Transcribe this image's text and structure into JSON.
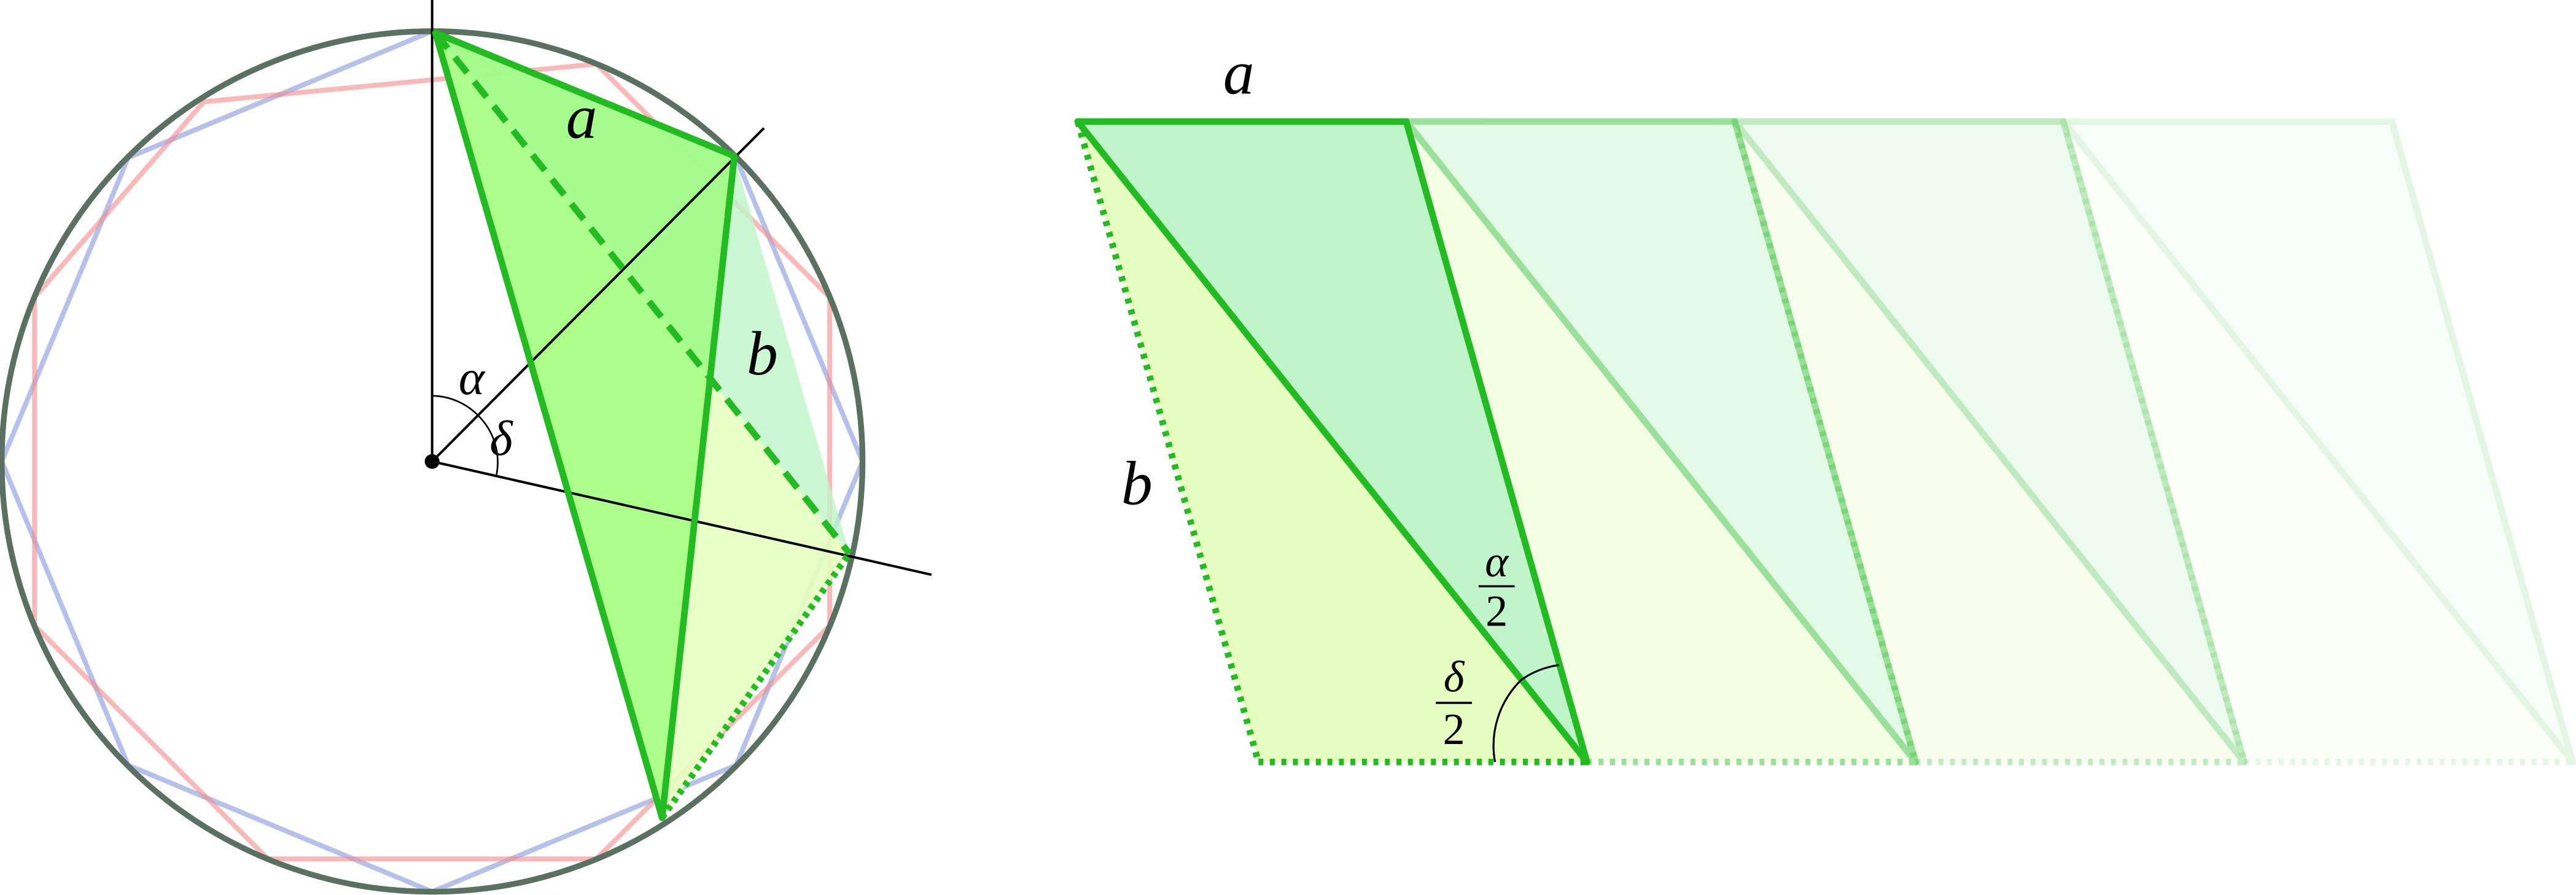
{
  "left_figure": {
    "labels": {
      "a": "a",
      "b": "b",
      "alpha": "α",
      "delta": "δ"
    }
  },
  "right_figure": {
    "labels": {
      "a": "a",
      "b": "b",
      "alpha_half": {
        "numerator": "α",
        "denominator": "2"
      },
      "delta_half": {
        "numerator": "δ",
        "denominator": "2"
      }
    }
  }
}
